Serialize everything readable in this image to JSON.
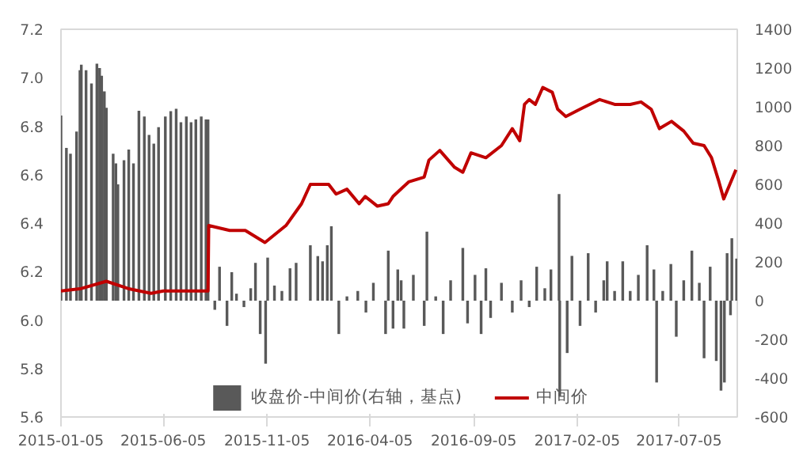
{
  "chart_data": {
    "type": "bar",
    "x": [
      "2015-01-05",
      "2015-01-13",
      "2015-01-19",
      "2015-01-28",
      "2015-02-02",
      "2015-02-04",
      "2015-02-11",
      "2015-02-19",
      "2015-02-27",
      "2015-03-03",
      "2015-03-06",
      "2015-03-10",
      "2015-03-13",
      "2015-03-23",
      "2015-03-27",
      "2015-03-30",
      "2015-04-08",
      "2015-04-15",
      "2015-04-22",
      "2015-04-30",
      "2015-05-08",
      "2015-05-15",
      "2015-05-22",
      "2015-05-29",
      "2015-06-08",
      "2015-06-16",
      "2015-06-24",
      "2015-07-01",
      "2015-07-09",
      "2015-07-16",
      "2015-07-23",
      "2015-07-31",
      "2015-08-07",
      "2015-08-10",
      "2015-08-20",
      "2015-08-27",
      "2015-09-07",
      "2015-09-14",
      "2015-09-21",
      "2015-10-02",
      "2015-10-12",
      "2015-10-19",
      "2015-10-26",
      "2015-11-03",
      "2015-11-06",
      "2015-11-16",
      "2015-11-27",
      "2015-12-09",
      "2015-12-18",
      "2016-01-08",
      "2016-01-19",
      "2016-01-26",
      "2016-02-02",
      "2016-02-08",
      "2016-02-19",
      "2016-03-02",
      "2016-03-18",
      "2016-03-30",
      "2016-04-10",
      "2016-04-28",
      "2016-05-02",
      "2016-05-09",
      "2016-05-16",
      "2016-05-21",
      "2016-05-25",
      "2016-06-08",
      "2016-06-24",
      "2016-06-28",
      "2016-07-11",
      "2016-07-22",
      "2016-08-02",
      "2016-08-20",
      "2016-08-27",
      "2016-09-07",
      "2016-09-16",
      "2016-09-23",
      "2016-09-30",
      "2016-10-16",
      "2016-11-01",
      "2016-11-14",
      "2016-11-26",
      "2016-12-07",
      "2016-12-19",
      "2016-12-28",
      "2017-01-09",
      "2017-01-10",
      "2017-01-21",
      "2017-01-28",
      "2017-02-09",
      "2017-02-21",
      "2017-03-04",
      "2017-03-16",
      "2017-03-21",
      "2017-04-01",
      "2017-04-13",
      "2017-04-24",
      "2017-05-06",
      "2017-05-19",
      "2017-05-29",
      "2017-06-02",
      "2017-06-11",
      "2017-06-23",
      "2017-07-01",
      "2017-07-12",
      "2017-07-24",
      "2017-08-04",
      "2017-08-11",
      "2017-08-20",
      "2017-08-29",
      "2017-09-05",
      "2017-09-10",
      "2017-09-14",
      "2017-09-19",
      "2017-09-21",
      "2017-09-28"
    ],
    "series": [
      {
        "name": "收盘价-中间价(右轴，基点)",
        "axis": "y2",
        "color": "#595959",
        "values": [
          955,
          788,
          758,
          872,
          1189,
          1217,
          1189,
          1120,
          1222,
          1200,
          1160,
          1080,
          995,
          758,
          708,
          600,
          725,
          780,
          708,
          980,
          950,
          855,
          810,
          895,
          950,
          978,
          990,
          920,
          950,
          920,
          935,
          950,
          935,
          935,
          -47,
          175,
          -130,
          147,
          36,
          -33,
          64,
          195,
          -172,
          -325,
          222,
          78,
          50,
          167,
          195,
          286,
          230,
          203,
          286,
          384,
          -172,
          22,
          50,
          -61,
          92,
          -172,
          258,
          -144,
          161,
          105,
          -144,
          133,
          -130,
          356,
          22,
          -172,
          105,
          272,
          -117,
          133,
          -172,
          167,
          -89,
          92,
          -61,
          105,
          -33,
          175,
          64,
          161,
          550,
          -492,
          -270,
          231,
          -130,
          245,
          -61,
          105,
          203,
          50,
          203,
          50,
          133,
          286,
          161,
          -422,
          50,
          189,
          -186,
          105,
          258,
          92,
          -297,
          175,
          -311,
          -464,
          -422,
          245,
          -75,
          322,
          217
        ]
      },
      {
        "name": "中间价",
        "type": "line",
        "color": "#c00000",
        "x": [
          "2015-01-05",
          "2015-02-04",
          "2015-03-13",
          "2015-04-14",
          "2015-05-18",
          "2015-06-05",
          "2015-08-10",
          "2015-08-11",
          "2015-09-11",
          "2015-10-04",
          "2015-11-02",
          "2015-12-03",
          "2015-12-26",
          "2016-01-08",
          "2016-02-04",
          "2016-02-15",
          "2016-03-02",
          "2016-03-20",
          "2016-03-29",
          "2016-04-16",
          "2016-05-02",
          "2016-05-09",
          "2016-06-01",
          "2016-06-24",
          "2016-07-01",
          "2016-07-17",
          "2016-08-08",
          "2016-08-20",
          "2016-09-01",
          "2016-09-23",
          "2016-10-16",
          "2016-11-01",
          "2016-11-12",
          "2016-11-19",
          "2016-11-26",
          "2016-12-05",
          "2016-12-16",
          "2016-12-30",
          "2017-01-07",
          "2017-01-19",
          "2017-02-09",
          "2017-03-10",
          "2017-04-01",
          "2017-04-24",
          "2017-05-10",
          "2017-05-25",
          "2017-06-06",
          "2017-06-24",
          "2017-07-12",
          "2017-07-26",
          "2017-08-11",
          "2017-08-22",
          "2017-09-02",
          "2017-09-09",
          "2017-09-18",
          "2017-09-27"
        ],
        "values": [
          6.12,
          6.13,
          6.16,
          6.13,
          6.11,
          6.12,
          6.12,
          6.39,
          6.37,
          6.37,
          6.32,
          6.39,
          6.48,
          6.56,
          6.56,
          6.52,
          6.54,
          6.48,
          6.51,
          6.47,
          6.48,
          6.51,
          6.57,
          6.59,
          6.66,
          6.7,
          6.63,
          6.61,
          6.69,
          6.67,
          6.72,
          6.79,
          6.74,
          6.89,
          6.91,
          6.89,
          6.96,
          6.94,
          6.87,
          6.84,
          6.87,
          6.91,
          6.89,
          6.89,
          6.9,
          6.87,
          6.79,
          6.82,
          6.78,
          6.73,
          6.72,
          6.67,
          6.57,
          6.5,
          6.56,
          6.62
        ]
      }
    ],
    "xlim": [
      "2015-01-05",
      "2017-09-29"
    ],
    "xticks": [
      "2015-01-05",
      "2015-06-05",
      "2015-11-05",
      "2016-04-05",
      "2016-09-05",
      "2017-02-05",
      "2017-07-05"
    ],
    "ylim": [
      5.6,
      7.2
    ],
    "yticks": [
      {
        "value": 5.6,
        "label": "5.6"
      },
      {
        "value": 5.8,
        "label": "5.8"
      },
      {
        "value": 6,
        "label": "6.0"
      },
      {
        "value": 6.2,
        "label": "6.2"
      },
      {
        "value": 6.4,
        "label": "6.4"
      },
      {
        "value": 6.6,
        "label": "6.6"
      },
      {
        "value": 6.8,
        "label": "6.8"
      },
      {
        "value": 7,
        "label": "7.0"
      },
      {
        "value": 7.2,
        "label": "7.2"
      }
    ],
    "y2lim": [
      -600,
      1400
    ],
    "y2ticks": [
      -600,
      -400,
      -200,
      0,
      200,
      400,
      600,
      800,
      1000,
      1200,
      1400
    ],
    "grid": false,
    "legend": "bottom"
  }
}
